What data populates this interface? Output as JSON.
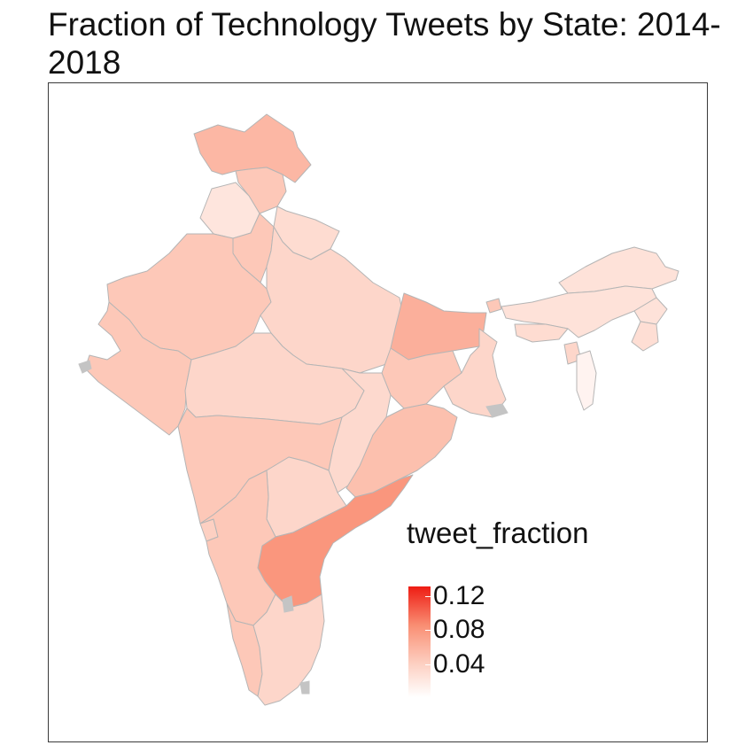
{
  "title": "Fraction of Technology Tweets by State: 2014-2018",
  "legend": {
    "title": "tweet_fraction",
    "ticks": [
      {
        "label": "0.12",
        "value": 0.12
      },
      {
        "label": "0.08",
        "value": 0.08
      },
      {
        "label": "0.04",
        "value": 0.04
      }
    ],
    "range": [
      0.0,
      0.13
    ],
    "low_color": "#ffffff",
    "high_color": "#ee1c13"
  },
  "colors": {
    "border": "#b5b5b5",
    "territory": "#c4c4c4",
    "background": "#ffffff"
  },
  "chart_data": {
    "type": "choropleth",
    "title": "Fraction of Technology Tweets by State: 2014-2018",
    "fill_variable": "tweet_fraction",
    "legend_placement": "bottom-right inside panel",
    "regions": [
      {
        "id": "jammu-kashmir",
        "value": 0.055
      },
      {
        "id": "himachal-pradesh",
        "value": 0.045
      },
      {
        "id": "punjab",
        "value": 0.022
      },
      {
        "id": "haryana",
        "value": 0.045
      },
      {
        "id": "uttarakhand",
        "value": 0.03
      },
      {
        "id": "rajasthan",
        "value": 0.045
      },
      {
        "id": "uttar-pradesh",
        "value": 0.035
      },
      {
        "id": "bihar",
        "value": 0.06
      },
      {
        "id": "gujarat",
        "value": 0.045
      },
      {
        "id": "madhya-pradesh",
        "value": 0.035
      },
      {
        "id": "jharkhand",
        "value": 0.045
      },
      {
        "id": "west-bengal",
        "value": 0.035
      },
      {
        "id": "chhattisgarh",
        "value": 0.032
      },
      {
        "id": "odisha",
        "value": 0.05
      },
      {
        "id": "maharashtra",
        "value": 0.045
      },
      {
        "id": "telangana",
        "value": 0.035
      },
      {
        "id": "andhra-pradesh",
        "value": 0.075
      },
      {
        "id": "goa",
        "value": 0.04
      },
      {
        "id": "karnataka",
        "value": 0.045
      },
      {
        "id": "kerala",
        "value": 0.045
      },
      {
        "id": "tamil-nadu",
        "value": 0.035
      },
      {
        "id": "sikkim",
        "value": 0.045
      },
      {
        "id": "arunachal-pradesh",
        "value": 0.025
      },
      {
        "id": "assam",
        "value": 0.025
      },
      {
        "id": "meghalaya",
        "value": 0.03
      },
      {
        "id": "nagaland",
        "value": 0.025
      },
      {
        "id": "manipur",
        "value": 0.028
      },
      {
        "id": "tripura",
        "value": 0.035
      },
      {
        "id": "mizoram",
        "value": 0.01
      }
    ]
  }
}
